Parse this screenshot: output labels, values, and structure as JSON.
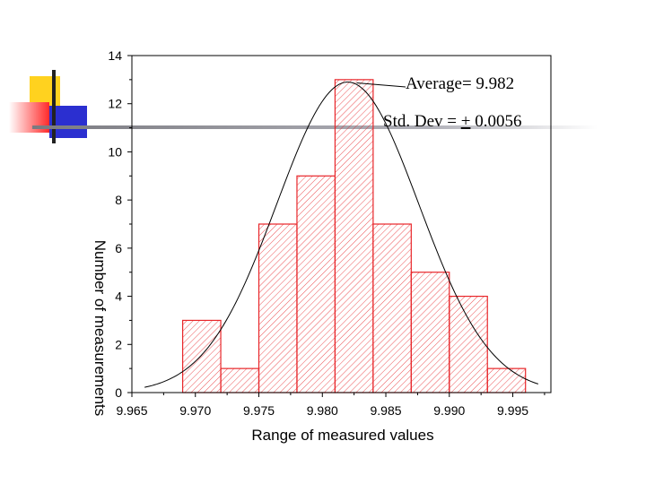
{
  "chart_data": {
    "type": "bar",
    "subtype": "histogram",
    "title": "",
    "xlabel": "Range of measured values",
    "ylabel": "Number of measurements",
    "xlim": [
      9.965,
      9.998
    ],
    "ylim": [
      0,
      14
    ],
    "x_ticks": [
      "9.965",
      "9.970",
      "9.975",
      "9.980",
      "9.985",
      "9.990",
      "9.995"
    ],
    "y_ticks": [
      "0",
      "2",
      "4",
      "6",
      "8",
      "10",
      "12",
      "14"
    ],
    "bins": [
      {
        "from": 9.969,
        "to": 9.972,
        "count": 3
      },
      {
        "from": 9.972,
        "to": 9.975,
        "count": 1
      },
      {
        "from": 9.975,
        "to": 9.978,
        "count": 7
      },
      {
        "from": 9.978,
        "to": 9.981,
        "count": 9
      },
      {
        "from": 9.981,
        "to": 9.984,
        "count": 13
      },
      {
        "from": 9.984,
        "to": 9.987,
        "count": 7
      },
      {
        "from": 9.987,
        "to": 9.99,
        "count": 5
      },
      {
        "from": 9.99,
        "to": 9.993,
        "count": 4
      },
      {
        "from": 9.993,
        "to": 9.996,
        "count": 1
      }
    ],
    "fit_curve": {
      "type": "normal",
      "mean": 9.982,
      "std": 0.0056,
      "peak": 12.9,
      "from": 9.966,
      "to": 9.997
    },
    "annotations": {
      "average": "Average= 9.982",
      "std_prefix": "Std. Dev = ",
      "std_pm": "+",
      "std_value": " 0.0056"
    },
    "colors": {
      "bar": "#e8262a",
      "axis": "#000000",
      "curve": "#000000"
    }
  }
}
